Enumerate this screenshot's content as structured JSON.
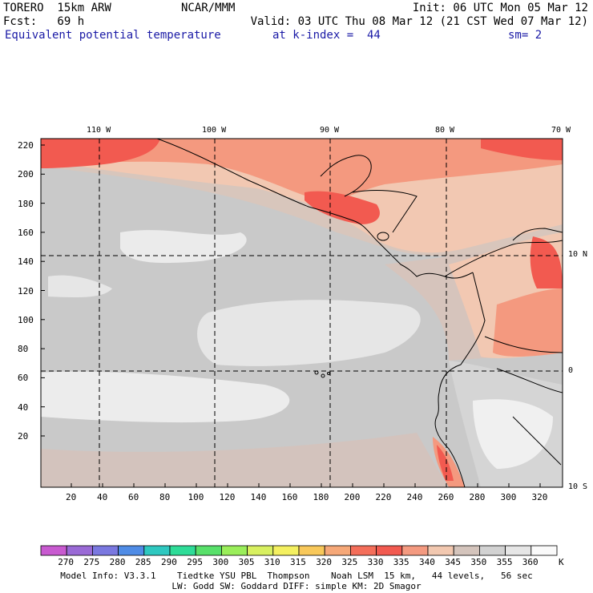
{
  "header": {
    "model": "TORERO  15km ARW",
    "center": "NCAR/MMM",
    "init": "Init: 06 UTC Mon 05 Mar 12",
    "fcst": "Fcst:   69 h",
    "valid": "Valid: 03 UTC Thu 08 Mar 12 (21 CST Wed 07 Mar 12)",
    "field": "Equivalent potential temperature",
    "level": "at k-index =  44",
    "smooth": "sm= 2"
  },
  "map": {
    "lon_labels": [
      "110 W",
      "100 W",
      "90 W",
      "80 W",
      "70 W"
    ],
    "lat_labels": [
      "10 N",
      "0",
      "10 S"
    ],
    "y_ticks": [
      "220",
      "200",
      "180",
      "160",
      "140",
      "120",
      "100",
      "80",
      "60",
      "40",
      "20"
    ],
    "x_ticks": [
      "20",
      "40",
      "60",
      "80",
      "100",
      "120",
      "140",
      "160",
      "180",
      "200",
      "220",
      "240",
      "260",
      "280",
      "300",
      "320"
    ]
  },
  "colorbar": {
    "unit": "K",
    "labels": [
      "270",
      "275",
      "280",
      "285",
      "290",
      "295",
      "300",
      "305",
      "310",
      "315",
      "320",
      "325",
      "330",
      "335",
      "340",
      "345",
      "350",
      "355",
      "360"
    ],
    "colors": [
      "#c85ad0",
      "#9a6ad6",
      "#7a78e0",
      "#4f8ce6",
      "#2ec8c0",
      "#2edc98",
      "#58e06a",
      "#9aee5a",
      "#d8f060",
      "#f4f060",
      "#f8c85a",
      "#f6a878",
      "#f46e5a",
      "#f25a50",
      "#f49a80",
      "#f2c8b0",
      "#d4c4bc",
      "#d2d2d2",
      "#e6e6e6",
      "#fafafa"
    ]
  },
  "footer": {
    "line1": "Model Info: V3.3.1    Tiedtke YSU PBL  Thompson    Noah LSM  15 km,   44 levels,   56 sec",
    "line2": "LW: Godd SW: Goddard DIFF: simple KM: 2D Smagor"
  }
}
